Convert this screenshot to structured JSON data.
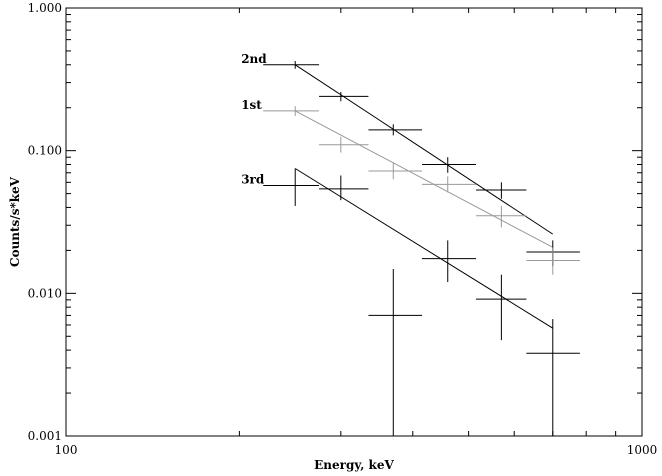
{
  "chart_data": {
    "type": "scatter",
    "x_scale": "log",
    "y_scale": "log",
    "xlim": [
      100,
      1000
    ],
    "ylim": [
      0.001,
      1.0
    ],
    "xlabel": "Energy, keV",
    "ylabel": "Counts/s*keV",
    "grid": false,
    "x_tick_labels": [
      {
        "value": 100,
        "label": "100"
      },
      {
        "value": 1000,
        "label": "1000"
      }
    ],
    "y_tick_labels": [
      {
        "value": 0.001,
        "label": "0.001"
      },
      {
        "value": 0.01,
        "label": "0.010"
      },
      {
        "value": 0.1,
        "label": "0.100"
      },
      {
        "value": 1.0,
        "label": "1.000"
      }
    ],
    "series": [
      {
        "name": "2nd",
        "color": "#000000",
        "points": [
          {
            "x": 250,
            "y": 0.4,
            "xlo": 220,
            "xhi": 275,
            "ylo": 0.375,
            "yhi": 0.425
          },
          {
            "x": 300,
            "y": 0.24,
            "xlo": 275,
            "xhi": 335,
            "ylo": 0.222,
            "yhi": 0.258
          },
          {
            "x": 370,
            "y": 0.14,
            "xlo": 335,
            "xhi": 415,
            "ylo": 0.128,
            "yhi": 0.153
          },
          {
            "x": 460,
            "y": 0.08,
            "xlo": 415,
            "xhi": 515,
            "ylo": 0.07,
            "yhi": 0.09
          },
          {
            "x": 570,
            "y": 0.053,
            "xlo": 515,
            "xhi": 630,
            "ylo": 0.046,
            "yhi": 0.06
          },
          {
            "x": 700,
            "y": 0.0195,
            "xlo": 630,
            "xhi": 780,
            "ylo": 0.0155,
            "yhi": 0.0235
          }
        ],
        "fit": {
          "x": [
            250,
            700
          ],
          "y": [
            0.4,
            0.026
          ]
        }
      },
      {
        "name": "1st",
        "color": "#999999",
        "points": [
          {
            "x": 250,
            "y": 0.19,
            "xlo": 220,
            "xhi": 275,
            "ylo": 0.175,
            "yhi": 0.205
          },
          {
            "x": 300,
            "y": 0.11,
            "xlo": 275,
            "xhi": 335,
            "ylo": 0.097,
            "yhi": 0.125
          },
          {
            "x": 370,
            "y": 0.072,
            "xlo": 335,
            "xhi": 415,
            "ylo": 0.063,
            "yhi": 0.082
          },
          {
            "x": 460,
            "y": 0.058,
            "xlo": 415,
            "xhi": 515,
            "ylo": 0.051,
            "yhi": 0.066
          },
          {
            "x": 570,
            "y": 0.035,
            "xlo": 515,
            "xhi": 630,
            "ylo": 0.029,
            "yhi": 0.041
          },
          {
            "x": 700,
            "y": 0.017,
            "xlo": 630,
            "xhi": 780,
            "ylo": 0.0135,
            "yhi": 0.021
          }
        ],
        "fit": {
          "x": [
            250,
            700
          ],
          "y": [
            0.19,
            0.021
          ]
        }
      },
      {
        "name": "3rd",
        "color": "#000000",
        "points": [
          {
            "x": 250,
            "y": 0.057,
            "xlo": 220,
            "xhi": 275,
            "ylo": 0.041,
            "yhi": 0.075
          },
          {
            "x": 300,
            "y": 0.054,
            "xlo": 275,
            "xhi": 335,
            "ylo": 0.045,
            "yhi": 0.067
          },
          {
            "x": 370,
            "y": 0.007,
            "xlo": 335,
            "xhi": 415,
            "ylo": 0.001,
            "yhi": 0.0148
          },
          {
            "x": 460,
            "y": 0.0175,
            "xlo": 415,
            "xhi": 515,
            "ylo": 0.012,
            "yhi": 0.0235
          },
          {
            "x": 570,
            "y": 0.0091,
            "xlo": 515,
            "xhi": 630,
            "ylo": 0.0047,
            "yhi": 0.0135
          },
          {
            "x": 700,
            "y": 0.0038,
            "xlo": 630,
            "xhi": 780,
            "ylo": 0.001,
            "yhi": 0.0066
          }
        ],
        "fit": {
          "x": [
            250,
            700
          ],
          "y": [
            0.075,
            0.0057
          ]
        }
      }
    ]
  }
}
